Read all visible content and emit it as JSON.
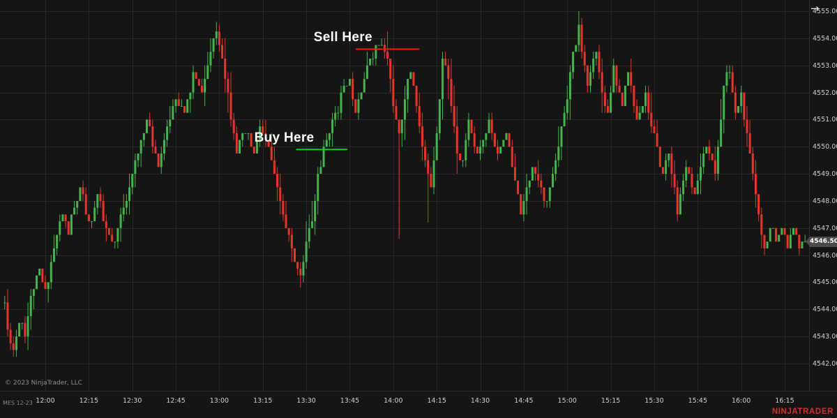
{
  "app": {
    "watermark": "© 2023 NinjaTrader, LLC",
    "instrument_label": "MES 12-23",
    "brand": "NINJATRADER",
    "brand_color": "#d23030"
  },
  "icons": {
    "scroll_arrow": "→"
  },
  "price_marker": {
    "value": "4546.50",
    "bg": "#4a4a4a",
    "text_color": "#ffffff"
  },
  "chart_data": {
    "type": "candlestick",
    "title": "",
    "instrument": "MES 12-23",
    "bar_interval": "1 minute",
    "colors": {
      "background": "#151515",
      "grid": "#282828",
      "up": "#45b34e",
      "down": "#e6352b",
      "axis_text": "#cfcfcf"
    },
    "y_axis": {
      "min": 4542,
      "max": 4555,
      "step": 1,
      "labels": [
        "4555.00",
        "4554.00",
        "4553.00",
        "4552.00",
        "4551.00",
        "4550.00",
        "4549.00",
        "4548.00",
        "4547.00",
        "4546.00",
        "4545.00",
        "4544.00",
        "4543.00",
        "4542.00"
      ]
    },
    "x_axis": {
      "minutes_origin": "11:45",
      "tick_minutes": [
        15,
        30,
        45,
        60,
        75,
        90,
        105,
        120,
        135,
        150,
        165,
        180,
        195,
        210,
        225,
        240,
        255,
        270
      ],
      "labels": [
        "12:00",
        "12:15",
        "12:30",
        "12:45",
        "13:00",
        "13:15",
        "13:30",
        "13:45",
        "14:00",
        "14:15",
        "14:30",
        "14:45",
        "15:00",
        "15:15",
        "15:30",
        "15:45",
        "16:00",
        "16:15"
      ]
    },
    "last_price": 4546.5,
    "encoding_note": "price_path_anchors are [minutes after 11:45, price] swing points read off the chart; 1-minute OHLC candles are interpolated between them",
    "jitter_seed": 11,
    "price_path_anchors": [
      [
        1,
        4544.2
      ],
      [
        2,
        4543.1
      ],
      [
        4,
        4542.5
      ],
      [
        6,
        4543.7
      ],
      [
        8,
        4543.2
      ],
      [
        11,
        4544.9
      ],
      [
        13,
        4545.5
      ],
      [
        15,
        4544.7
      ],
      [
        18,
        4546.3
      ],
      [
        21,
        4547.5
      ],
      [
        23,
        4546.9
      ],
      [
        27,
        4548.5
      ],
      [
        30,
        4547.1
      ],
      [
        33,
        4548.2
      ],
      [
        36,
        4546.9
      ],
      [
        39,
        4546.4
      ],
      [
        42,
        4547.8
      ],
      [
        45,
        4548.9
      ],
      [
        47,
        4549.7
      ],
      [
        50,
        4551.0
      ],
      [
        52,
        4550.1
      ],
      [
        54,
        4549.3
      ],
      [
        57,
        4550.7
      ],
      [
        60,
        4551.8
      ],
      [
        63,
        4551.2
      ],
      [
        66,
        4552.6
      ],
      [
        69,
        4552.1
      ],
      [
        72,
        4553.6
      ],
      [
        74,
        4554.2
      ],
      [
        76,
        4553.4
      ],
      [
        78,
        4551.9
      ],
      [
        81,
        4549.9
      ],
      [
        84,
        4550.6
      ],
      [
        87,
        4549.6
      ],
      [
        89,
        4550.7
      ],
      [
        92,
        4549.9
      ],
      [
        94,
        4548.9
      ],
      [
        97,
        4547.5
      ],
      [
        99,
        4546.6
      ],
      [
        101,
        4545.7
      ],
      [
        103,
        4545.3
      ],
      [
        105,
        4546.4
      ],
      [
        107,
        4547.3
      ],
      [
        109,
        4548.9
      ],
      [
        112,
        4550.2
      ],
      [
        115,
        4551.2
      ],
      [
        118,
        4552.1
      ],
      [
        120,
        4552.4
      ],
      [
        122,
        4551.3
      ],
      [
        125,
        4552.6
      ],
      [
        128,
        4553.5
      ],
      [
        131,
        4553.8
      ],
      [
        133,
        4553.2
      ],
      [
        135,
        4551.6
      ],
      [
        137,
        4550.3
      ],
      [
        139,
        4551.8
      ],
      [
        141,
        4552.9
      ],
      [
        143,
        4551.5
      ],
      [
        146,
        4549.4
      ],
      [
        148,
        4548.6
      ],
      [
        150,
        4550.5
      ],
      [
        152,
        4553.3
      ],
      [
        154,
        4552.5
      ],
      [
        157,
        4549.9
      ],
      [
        159,
        4549.4
      ],
      [
        161,
        4551.0
      ],
      [
        164,
        4549.6
      ],
      [
        168,
        4550.9
      ],
      [
        171,
        4549.8
      ],
      [
        174,
        4550.6
      ],
      [
        176,
        4549.3
      ],
      [
        179,
        4547.5
      ],
      [
        183,
        4549.4
      ],
      [
        186,
        4548.6
      ],
      [
        188,
        4547.9
      ],
      [
        192,
        4550.0
      ],
      [
        195,
        4552.0
      ],
      [
        197,
        4553.3
      ],
      [
        199,
        4554.3
      ],
      [
        202,
        4552.2
      ],
      [
        205,
        4553.6
      ],
      [
        207,
        4552.0
      ],
      [
        209,
        4551.2
      ],
      [
        211,
        4552.9
      ],
      [
        214,
        4551.6
      ],
      [
        216,
        4552.8
      ],
      [
        219,
        4550.9
      ],
      [
        222,
        4551.9
      ],
      [
        225,
        4550.3
      ],
      [
        228,
        4549.0
      ],
      [
        230,
        4549.9
      ],
      [
        233,
        4547.5
      ],
      [
        236,
        4549.3
      ],
      [
        239,
        4548.2
      ],
      [
        243,
        4550.2
      ],
      [
        246,
        4549.0
      ],
      [
        249,
        4552.2
      ],
      [
        251,
        4552.9
      ],
      [
        253,
        4551.2
      ],
      [
        255,
        4551.9
      ],
      [
        257,
        4550.3
      ],
      [
        259,
        4548.9
      ],
      [
        261,
        4547.5
      ],
      [
        263,
        4546.2
      ],
      [
        265,
        4547.1
      ],
      [
        267,
        4546.4
      ],
      [
        269,
        4547.0
      ],
      [
        271,
        4546.2
      ],
      [
        273,
        4547.2
      ],
      [
        275,
        4546.3
      ],
      [
        277,
        4546.5
      ]
    ],
    "wick_events": [
      {
        "t": 74,
        "high": 4554.6
      },
      {
        "t": 103,
        "low": 4544.8
      },
      {
        "t": 137,
        "low": 4546.6
      },
      {
        "t": 147,
        "low": 4547.2
      },
      {
        "t": 199,
        "high": 4555.0
      }
    ],
    "annotations": [
      {
        "side": "sell",
        "label": "Sell Here",
        "price": 4553.6,
        "t_start": 122,
        "t_end": 144,
        "line_color": "#ff1400"
      },
      {
        "side": "buy",
        "label": "Buy Here",
        "price": 4549.9,
        "t_start": 101.5,
        "t_end": 119.2,
        "line_color": "#00cc11"
      }
    ]
  }
}
